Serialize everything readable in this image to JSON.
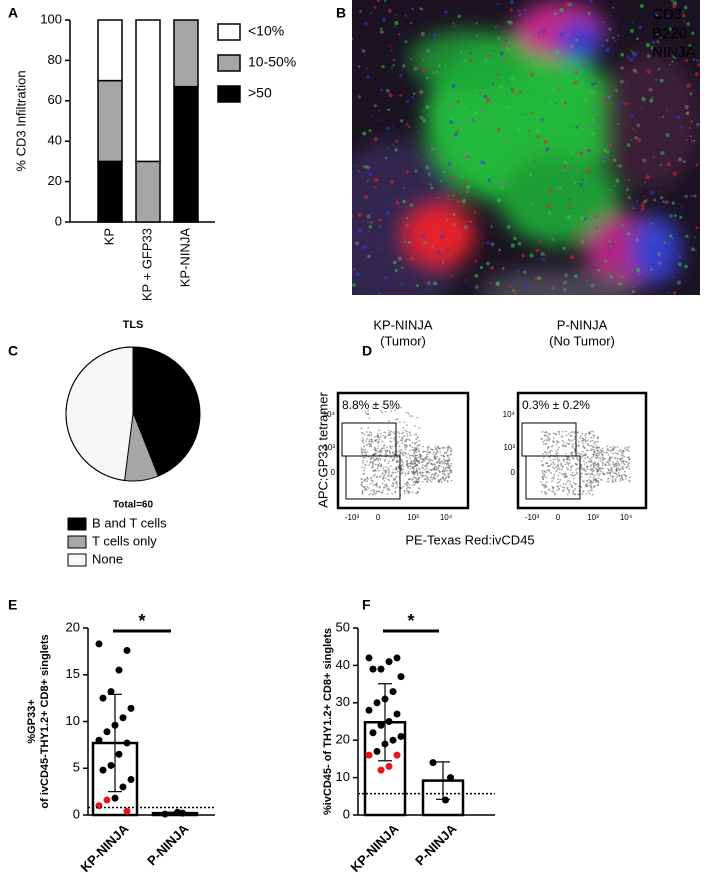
{
  "panel_labels": [
    "A",
    "B",
    "C",
    "D",
    "E",
    "F"
  ],
  "image_b": {
    "labels": [
      {
        "text": "CD3",
        "color": "#e8232a"
      },
      {
        "text": "B220",
        "color": "#2a3cd8"
      },
      {
        "text": "NINJA",
        "color": "#1fa53a"
      }
    ]
  },
  "flow": {
    "ylabel": "APC:GP33 tetramer",
    "xlabel": "PE-Texas Red:ivCD45",
    "yticks": [
      "10⁴",
      "10³",
      "0"
    ],
    "xticks": [
      "-10³",
      "0",
      "10³",
      "10⁴"
    ],
    "plots": [
      {
        "title": "KP-NINJA",
        "subtitle": "(Tumor)",
        "gate_label": "8.8% ± 5%"
      },
      {
        "title": "P-NINJA",
        "subtitle": "(No Tumor)",
        "gate_label": "0.3% ± 0.2%"
      }
    ]
  },
  "chart_data": [
    {
      "type": "bar",
      "stacked": true,
      "ylabel": "% CD3 Infiltration",
      "categories": [
        "KP",
        "KP + GFP33",
        "KP-NINJA"
      ],
      "series": [
        {
          "name": ">50",
          "color": "#000000",
          "values": [
            30,
            0,
            67
          ]
        },
        {
          "name": "10-50%",
          "color": "#a6a6a6",
          "values": [
            40,
            30,
            33
          ]
        },
        {
          "name": "<10%",
          "color": "#ffffff",
          "values": [
            30,
            70,
            0
          ]
        }
      ],
      "ylim": [
        0,
        100
      ],
      "yticks": [
        0,
        20,
        40,
        60,
        80,
        100
      ]
    },
    {
      "type": "pie",
      "title": "TLS",
      "subtitle": "Total=60",
      "categories": [
        "B and T cells",
        "T cells only",
        "None"
      ],
      "values": [
        44,
        8,
        48
      ],
      "colors": [
        "#000000",
        "#a6a6a6",
        "#f7f7f7"
      ]
    },
    {
      "type": "bar",
      "ylabel": [
        "%GP33+",
        "of ivCD45-THY1.2+ CD8+ singlets"
      ],
      "categories": [
        "KP-NINJA",
        "P-NINJA"
      ],
      "values": [
        7.7,
        0.2
      ],
      "error": [
        5.2,
        0.1
      ],
      "points": [
        [
          18.3,
          17.6,
          15.5,
          13.2,
          12.5,
          11.4,
          10.4,
          9.6,
          8.9,
          8.0,
          7.7,
          6.5,
          5.3,
          4.8,
          3.8,
          3.0,
          1.8,
          1.6,
          1.0,
          0.4
        ],
        [
          0.1,
          0.2,
          0.3
        ]
      ],
      "point_colors": [
        [
          "#000",
          "#000",
          "#000",
          "#000",
          "#000",
          "#000",
          "#000",
          "#000",
          "#000",
          "#000",
          "#000",
          "#000",
          "#000",
          "#000",
          "#000",
          "#000",
          "#000",
          "#e8141b",
          "#e8141b",
          "#e8141b"
        ],
        [
          "#000",
          "#000",
          "#000"
        ]
      ],
      "threshold": 0.8,
      "significance": "*",
      "ylim": [
        0,
        20
      ],
      "yticks": [
        0,
        5,
        10,
        15,
        20
      ]
    },
    {
      "type": "bar",
      "ylabel": [
        "%ivCD45- of THY1.2+ CD8+ singlets"
      ],
      "categories": [
        "KP-NINJA",
        "P-NINJA"
      ],
      "values": [
        24.8,
        9.2
      ],
      "error": [
        10.3,
        5.0
      ],
      "points": [
        [
          42,
          42,
          41,
          39,
          39,
          37,
          33,
          31,
          30,
          28,
          27,
          25,
          24,
          22,
          21,
          20,
          19,
          17,
          16,
          16,
          13,
          12
        ],
        [
          14,
          10,
          4
        ]
      ],
      "point_colors": [
        [
          "#000",
          "#000",
          "#000",
          "#000",
          "#000",
          "#000",
          "#000",
          "#000",
          "#000",
          "#000",
          "#000",
          "#000",
          "#000",
          "#000",
          "#000",
          "#000",
          "#000",
          "#000",
          "#e8141b",
          "#e8141b",
          "#e8141b",
          "#e8141b"
        ],
        [
          "#000",
          "#000",
          "#000"
        ]
      ],
      "threshold": 5.7,
      "significance": "*",
      "ylim": [
        0,
        50
      ],
      "yticks": [
        0,
        10,
        20,
        30,
        40,
        50
      ]
    }
  ]
}
